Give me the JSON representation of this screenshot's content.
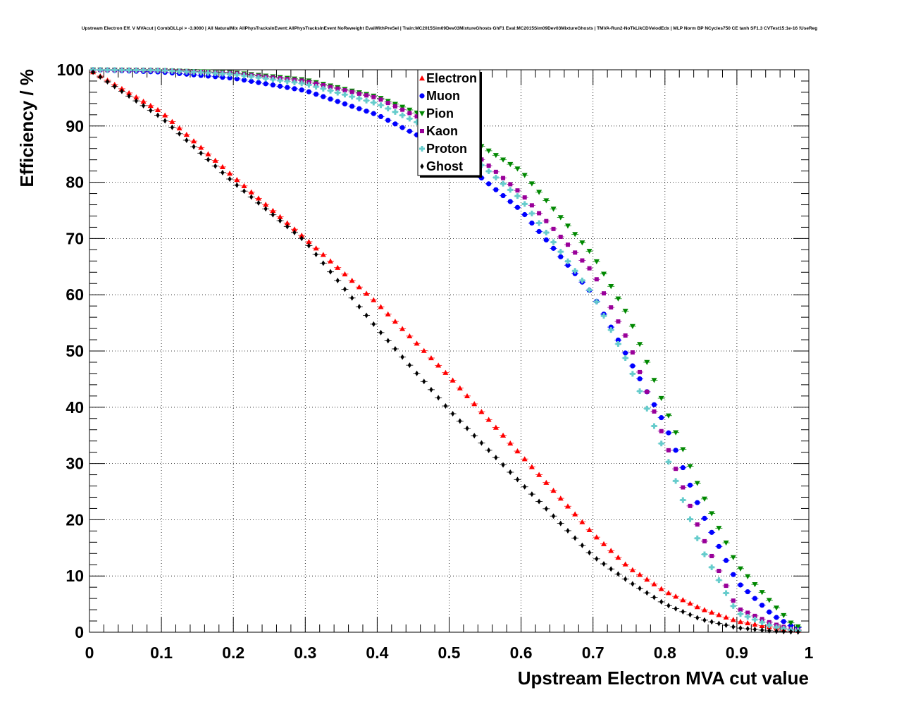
{
  "chart_data": {
    "type": "scatter",
    "title": "Upstream Electron Eff. V MVAcut | CombDLLpi > -3.0000 | All NaturalMix AllPhysTracksInEvent:AllPhysTracksInEvent NoReweight EvalWithPreSel | Train:MC2015Sim09Dev03MixtureGhosts GhF1 Eval:MC2015Sim09Dev03MixtureGhosts | TMVA-Run2-NoTkLikCDVelodEdx | MLP Norm BP NCycles750 CE tanh SF1.3 CVTest15:1e-16 !UseReg",
    "xlabel": "Upstream Electron MVA cut value",
    "ylabel": "Efficiency / %",
    "xlim": [
      0,
      1
    ],
    "ylim": [
      0,
      100
    ],
    "xticks": [
      "0",
      "0.1",
      "0.2",
      "0.3",
      "0.4",
      "0.5",
      "0.6",
      "0.7",
      "0.8",
      "0.9",
      "1"
    ],
    "yticks": [
      "0",
      "10",
      "20",
      "30",
      "40",
      "50",
      "60",
      "70",
      "80",
      "90",
      "100"
    ],
    "grid": true,
    "legend_position": "top-center",
    "x": [
      0,
      0.1,
      0.2,
      0.3,
      0.4,
      0.5,
      0.6,
      0.7,
      0.75,
      0.8,
      0.85,
      0.9,
      0.95,
      0.98
    ],
    "series": [
      {
        "name": "Electron",
        "color": "#ff0000",
        "marker": "triangle-up",
        "values": [
          100,
          92.5,
          81,
          70,
          58.5,
          45.5,
          31.5,
          17.5,
          11.5,
          7.3,
          4.2,
          2.0,
          0.8,
          0.3
        ]
      },
      {
        "name": "Muon",
        "color": "#0000ff",
        "marker": "circle",
        "values": [
          100,
          99.6,
          98.5,
          96.3,
          92.0,
          85.5,
          75,
          60,
          48.5,
          37,
          21.5,
          9.0,
          3.0,
          0.8
        ]
      },
      {
        "name": "Pion",
        "color": "#008800",
        "marker": "triangle-down",
        "values": [
          100,
          99.9,
          99.5,
          98.2,
          95.2,
          90.0,
          82,
          67,
          56,
          40,
          25,
          12,
          5.0,
          1.0
        ]
      },
      {
        "name": "Kaon",
        "color": "#990099",
        "marker": "square",
        "values": [
          100,
          99.9,
          99.4,
          98.0,
          95.0,
          89.0,
          78,
          64,
          51.5,
          34,
          17.5,
          4.3,
          1.5,
          0.4
        ]
      },
      {
        "name": "Proton",
        "color": "#66cccc",
        "marker": "cross",
        "values": [
          100,
          99.9,
          99.2,
          97.5,
          94.0,
          88.0,
          77,
          60,
          47.5,
          32,
          15,
          3.5,
          1.0,
          0.3
        ]
      },
      {
        "name": "Ghost",
        "color": "#000000",
        "marker": "diamond",
        "values": [
          100,
          91.5,
          80,
          69.5,
          54,
          39.5,
          26.5,
          13.5,
          9.0,
          5.0,
          2.3,
          0.8,
          0.2,
          0.05
        ]
      }
    ]
  }
}
